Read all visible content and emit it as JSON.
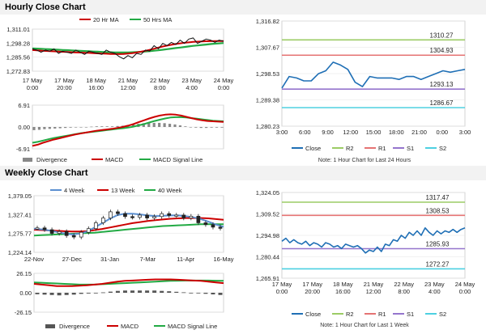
{
  "titles": {
    "hourly": "Hourly Close Chart",
    "weekly": "Weekly Close Chart"
  },
  "chart_data": [
    {
      "id": "hourly_ma",
      "type": "line",
      "legend": [
        "20 Hr MA",
        "50 Hrs MA"
      ],
      "x_tick_labels": [
        "17 May\n0:00",
        "17 May\n20:00",
        "18 May\n16:00",
        "21 May\n12:00",
        "22 May\n8:00",
        "23 May\n4:00",
        "24 May\n0:00"
      ],
      "y_tick_labels": [
        "1,311.01",
        "1,298.28",
        "1,285.56",
        "1,272.83"
      ],
      "ylim": [
        1272.83,
        1311.01
      ],
      "colors": {
        "close": "#111111",
        "ma20": "#cc0000",
        "ma50": "#22aa44"
      },
      "series": [
        {
          "name": "Close",
          "values": [
            1293,
            1292,
            1290,
            1292,
            1291,
            1293,
            1289,
            1291,
            1290,
            1289,
            1292,
            1290,
            1288,
            1291,
            1290,
            1289,
            1288,
            1292,
            1290,
            1289,
            1286,
            1284,
            1287,
            1285,
            1289,
            1288,
            1292,
            1291,
            1296,
            1293,
            1298,
            1296,
            1299,
            1297,
            1301,
            1298,
            1302,
            1303,
            1298,
            1300,
            1302,
            1301,
            1299,
            1301,
            1300
          ]
        },
        {
          "name": "20 Hr MA",
          "values": [
            1292,
            1291.8,
            1291.5,
            1291.2,
            1291,
            1290.8,
            1290.6,
            1290.4,
            1290.2,
            1290,
            1289.8,
            1289.7,
            1289.5,
            1289.4,
            1289.2,
            1289,
            1288.8,
            1288.7,
            1288.5,
            1288.4,
            1288.3,
            1288.5,
            1288.8,
            1289.2,
            1289.8,
            1290.5,
            1291.3,
            1292.2,
            1293.2,
            1294.2,
            1295.2,
            1296,
            1296.8,
            1297.5,
            1298.1,
            1298.6,
            1299,
            1299.4,
            1299.6,
            1299.8,
            1300,
            1300.1,
            1300.2,
            1300.2,
            1300.2
          ]
        },
        {
          "name": "50 Hrs MA",
          "values": [
            1293.5,
            1293.3,
            1293.1,
            1292.9,
            1292.7,
            1292.5,
            1292.3,
            1292.1,
            1291.9,
            1291.7,
            1291.5,
            1291.3,
            1291.1,
            1290.9,
            1290.7,
            1290.5,
            1290.3,
            1290.1,
            1290,
            1289.9,
            1289.8,
            1289.8,
            1289.9,
            1290,
            1290.2,
            1290.4,
            1290.7,
            1291,
            1291.4,
            1291.8,
            1292.3,
            1292.8,
            1293.3,
            1293.8,
            1294.3,
            1294.8,
            1295.3,
            1295.8,
            1296.2,
            1296.6,
            1297,
            1297.4,
            1297.8,
            1298.1,
            1298.4
          ]
        }
      ]
    },
    {
      "id": "hourly_macd",
      "type": "line",
      "legend": [
        "Divergence",
        "MACD",
        "MACD Signal Line"
      ],
      "y_tick_labels": [
        "6.91",
        "0.00",
        "-6.91"
      ],
      "ylim": [
        -6.91,
        6.91
      ],
      "colors": {
        "divergence": "#888888",
        "macd": "#cc0000",
        "signal": "#22aa44"
      },
      "series": [
        {
          "name": "MACD",
          "values": [
            -6,
            -5.6,
            -5,
            -4.5,
            -4,
            -3.6,
            -3.2,
            -2.8,
            -2.4,
            -2.1,
            -1.8,
            -1.5,
            -1.2,
            -1,
            -0.8,
            -0.6,
            -0.3,
            0,
            0.4,
            0.9,
            1.5,
            2.1,
            2.7,
            3.2,
            3.6,
            3.9,
            4,
            3.9,
            3.6,
            3.2,
            2.8,
            2.4,
            2.1,
            1.9,
            1.8,
            1.7,
            1.6
          ]
        },
        {
          "name": "MACD Signal Line",
          "values": [
            -5,
            -4.7,
            -4.3,
            -3.9,
            -3.5,
            -3.2,
            -2.9,
            -2.6,
            -2.3,
            -2,
            -1.8,
            -1.6,
            -1.4,
            -1.2,
            -1,
            -0.8,
            -0.6,
            -0.4,
            -0.2,
            0.1,
            0.5,
            0.9,
            1.4,
            1.9,
            2.3,
            2.7,
            3,
            3.1,
            3.1,
            3,
            2.8,
            2.6,
            2.4,
            2.2,
            2,
            1.9,
            1.8
          ]
        },
        {
          "name": "Divergence",
          "values": [
            -1,
            -0.9,
            -0.7,
            -0.6,
            -0.5,
            -0.4,
            -0.3,
            -0.2,
            -0.1,
            -0.1,
            0,
            0.1,
            0.2,
            0.2,
            0.2,
            0.2,
            0.3,
            0.4,
            0.6,
            0.8,
            1,
            1.2,
            1.3,
            1.3,
            1.3,
            1.2,
            1,
            0.8,
            0.5,
            0.2,
            0,
            -0.2,
            -0.3,
            -0.3,
            -0.2,
            -0.2,
            -0.2
          ]
        }
      ]
    },
    {
      "id": "hourly_pivot",
      "type": "line",
      "x_tick_labels": [
        "3:00",
        "6:00",
        "9:00",
        "12:00",
        "15:00",
        "18:00",
        "21:00",
        "0:00",
        "3:00"
      ],
      "y_tick_labels": [
        "1,316.82",
        "1,307.67",
        "1,298.53",
        "1,289.38",
        "1,280.23"
      ],
      "ylim": [
        1280.23,
        1316.82
      ],
      "levels": {
        "R2": 1310.27,
        "R1": 1304.93,
        "S1": 1293.13,
        "S2": 1286.67
      },
      "level_labels": [
        "1310.27",
        "1304.93",
        "1293.13",
        "1286.67"
      ],
      "legend": [
        "Close",
        "R2",
        "R1",
        "S1",
        "S2"
      ],
      "note": "Note: 1 Hour Chart for Last 24 Hours",
      "colors": {
        "close": "#1f6fb5",
        "R2": "#9ccc65",
        "R1": "#e57373",
        "S1": "#9575cd",
        "S2": "#4dd0e1"
      },
      "series": [
        {
          "name": "Close",
          "values": [
            1293.5,
            1297.5,
            1297,
            1296,
            1296,
            1298.5,
            1299.5,
            1302.5,
            1301.5,
            1300,
            1295.5,
            1294,
            1297.5,
            1297,
            1297,
            1297,
            1296.5,
            1297.5,
            1297.5,
            1296.5,
            1297.5,
            1298.5,
            1299.5,
            1299,
            1299.5,
            1300
          ]
        }
      ]
    },
    {
      "id": "weekly_ma",
      "type": "line",
      "legend": [
        "4 Week",
        "13 Week",
        "40 Week"
      ],
      "x_tick_labels": [
        "22-Nov",
        "27-Dec",
        "31-Jan",
        "7-Mar",
        "11-Apr",
        "16-May"
      ],
      "y_tick_labels": [
        "1,379.05",
        "1,327.41",
        "1,275.77",
        "1,224.14"
      ],
      "ylim": [
        1224.14,
        1379.05
      ],
      "colors": {
        "wk4": "#5b8fd0",
        "wk13": "#cc0000",
        "wk40": "#22aa44",
        "candle": "#222222"
      },
      "series": [
        {
          "name": "Close",
          "values": [
            1291,
            1286,
            1276,
            1281,
            1270,
            1266,
            1279,
            1289,
            1305,
            1318,
            1335,
            1330,
            1322,
            1320,
            1326,
            1318,
            1322,
            1330,
            1325,
            1326,
            1318,
            1323,
            1305,
            1300,
            1293,
            1290
          ]
        },
        {
          "name": "4 Week",
          "values": [
            1289,
            1287,
            1284,
            1280,
            1276,
            1273,
            1275,
            1281,
            1292,
            1304,
            1316,
            1326,
            1330,
            1330,
            1328,
            1325,
            1323,
            1324,
            1325,
            1325,
            1323,
            1320,
            1315,
            1308,
            1300,
            1294
          ]
        },
        {
          "name": "13 Week",
          "values": [
            1286,
            1285,
            1284,
            1283,
            1282,
            1281,
            1281,
            1282,
            1285,
            1288,
            1292,
            1296,
            1300,
            1304,
            1307,
            1310,
            1312,
            1314,
            1316,
            1317,
            1318,
            1318,
            1318,
            1317,
            1315,
            1313
          ]
        },
        {
          "name": "40 Week",
          "values": [
            1270,
            1271,
            1272,
            1273,
            1274,
            1275,
            1276,
            1277,
            1278,
            1280,
            1282,
            1284,
            1286,
            1288,
            1290,
            1292,
            1294,
            1296,
            1297,
            1298,
            1299,
            1300,
            1301,
            1301,
            1301,
            1301
          ]
        }
      ]
    },
    {
      "id": "weekly_macd",
      "type": "line",
      "legend": [
        "Divergence",
        "MACD",
        "MACD Signal Line"
      ],
      "y_tick_labels": [
        "26.15",
        "0.00",
        "-26.15"
      ],
      "ylim": [
        -26.15,
        26.15
      ],
      "colors": {
        "divergence": "#555555",
        "macd": "#cc0000",
        "signal": "#22aa44"
      },
      "series": [
        {
          "name": "MACD",
          "values": [
            12,
            11,
            10,
            9,
            9,
            9,
            9.5,
            10,
            11,
            12,
            13.5,
            15,
            16,
            16.5,
            17,
            17.5,
            18,
            18,
            18,
            17.5,
            17,
            16.5,
            16,
            15,
            14,
            13
          ]
        },
        {
          "name": "MACD Signal Line",
          "values": [
            14,
            13.5,
            13,
            12.5,
            12,
            11.5,
            11,
            11,
            11,
            11.5,
            12,
            12.5,
            13,
            13.5,
            14,
            14.5,
            15,
            15.5,
            16,
            16.2,
            16.4,
            16.5,
            16.5,
            16.4,
            16.2,
            16
          ]
        },
        {
          "name": "Divergence",
          "values": [
            -2,
            -2.5,
            -3,
            -3.5,
            -3,
            -2.5,
            -1.5,
            -1,
            0,
            0.5,
            1.5,
            2.5,
            3,
            3,
            3,
            3,
            3,
            2.5,
            2,
            1.3,
            0.6,
            0,
            -0.5,
            -1.4,
            -2.2,
            -3
          ]
        }
      ]
    },
    {
      "id": "weekly_pivot",
      "type": "line",
      "x_tick_labels": [
        "17 May\n0:00",
        "17 May\n20:00",
        "18 May\n16:00",
        "21 May\n12:00",
        "22 May\n8:00",
        "23 May\n4:00",
        "24 May\n0:00"
      ],
      "y_tick_labels": [
        "1,324.05",
        "1,309.52",
        "1,294.98",
        "1,280.44",
        "1,265.91"
      ],
      "ylim": [
        1265.91,
        1324.05
      ],
      "levels": {
        "R2": 1317.47,
        "R1": 1308.53,
        "S1": 1285.93,
        "S2": 1272.27
      },
      "level_labels": [
        "1317.47",
        "1308.53",
        "1285.93",
        "1272.27"
      ],
      "legend": [
        "Close",
        "R2",
        "R1",
        "S1",
        "S2"
      ],
      "note": "Note: 1 Hour Chart for Last 1 Week",
      "colors": {
        "close": "#1f6fb5",
        "R2": "#9ccc65",
        "R1": "#e57373",
        "S1": "#9575cd",
        "S2": "#4dd0e1"
      },
      "series": [
        {
          "name": "Close",
          "values": [
            1291,
            1293,
            1290,
            1292,
            1290,
            1289,
            1291,
            1288,
            1290,
            1289,
            1287,
            1290,
            1289,
            1287,
            1288,
            1286,
            1289,
            1288,
            1287,
            1288,
            1286,
            1283,
            1285,
            1284,
            1287,
            1284,
            1289,
            1288,
            1292,
            1291,
            1295,
            1293,
            1297,
            1295,
            1298,
            1295,
            1300,
            1297,
            1295,
            1298,
            1296,
            1298,
            1297,
            1299,
            1297,
            1299,
            1300
          ]
        }
      ]
    }
  ]
}
